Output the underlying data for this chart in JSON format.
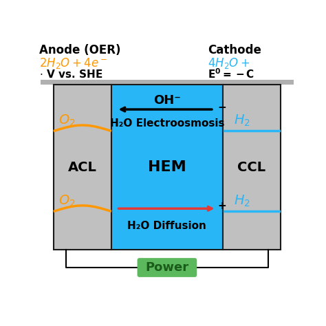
{
  "bg_color": "#ffffff",
  "fig_width": 4.74,
  "fig_height": 4.74,
  "hem_color": "#29b6f6",
  "acl_color": "#c0c0c0",
  "ccl_color": "#c0c0c0",
  "border_color": "#1a1a1a",
  "oh_label": "OH⁻",
  "electroosmosis_label": "H₂O Electroosmosis",
  "hem_label": "HEM",
  "diffusion_label": "H₂O Diffusion",
  "acl_label": "ACL",
  "ccl_label": "CCL",
  "o2_color": "#ff9800",
  "blue_color": "#29b6f6",
  "red_color": "#e53935",
  "black_color": "#000000",
  "power_color": "#5cb85c",
  "power_label": "Power",
  "power_text_color": "#1a5c1a"
}
